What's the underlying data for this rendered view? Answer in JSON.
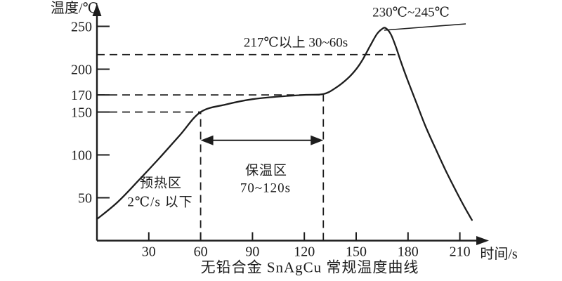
{
  "chart_data": {
    "type": "line",
    "title": "无铅合金 SnAgCu 常规温度曲线",
    "xlabel": "时间/s",
    "ylabel": "温度/℃",
    "x_ticks": [
      30,
      60,
      90,
      120,
      150,
      180,
      210
    ],
    "y_ticks": [
      50,
      100,
      150,
      170,
      200,
      250
    ],
    "xlim": [
      0,
      222
    ],
    "ylim": [
      0,
      270
    ],
    "grid": false,
    "legend": "none",
    "colors": {
      "ink": "#1d1d1d",
      "background": "#ffffff"
    },
    "series": [
      {
        "points": [
          [
            0,
            25
          ],
          [
            12,
            45
          ],
          [
            24,
            70
          ],
          [
            36,
            96
          ],
          [
            48,
            123
          ],
          [
            60,
            150
          ],
          [
            75,
            159
          ],
          [
            90,
            165
          ],
          [
            105,
            168
          ],
          [
            120,
            170
          ],
          [
            131,
            171
          ],
          [
            138,
            178
          ],
          [
            145,
            189
          ],
          [
            150,
            200
          ],
          [
            154,
            212
          ],
          [
            158,
            227
          ],
          [
            162,
            241
          ],
          [
            165,
            247
          ],
          [
            167,
            248
          ],
          [
            170,
            241
          ],
          [
            173,
            226
          ],
          [
            176,
            208
          ],
          [
            180,
            186
          ],
          [
            185,
            160
          ],
          [
            190,
            134
          ],
          [
            196,
            107
          ],
          [
            202,
            81
          ],
          [
            208,
            57
          ],
          [
            213,
            38
          ],
          [
            217,
            24
          ]
        ]
      }
    ],
    "guides": {
      "h_dashed": [
        {
          "temp": 217,
          "t_from": 0,
          "t_to": 174
        },
        {
          "temp": 170,
          "t_from": 0,
          "t_to": 131
        },
        {
          "temp": 150,
          "t_from": 0,
          "t_to": 60
        }
      ],
      "v_dashed": [
        {
          "t": 60,
          "temp_from": 0,
          "temp_to": 150
        },
        {
          "t": 131,
          "temp_from": 0,
          "temp_to": 170
        }
      ]
    },
    "soak_arrow": {
      "t_from": 60,
      "t_to": 131,
      "temp": 117
    },
    "annotations": {
      "peak_range": "230℃~245℃",
      "time_above_liquidus": "217℃以上 30~60s",
      "soak_zone_line1": "保温区",
      "soak_zone_line2": "70~120s",
      "preheat_zone_line1": "预热区",
      "preheat_zone_line2": "2℃/s 以下"
    }
  }
}
